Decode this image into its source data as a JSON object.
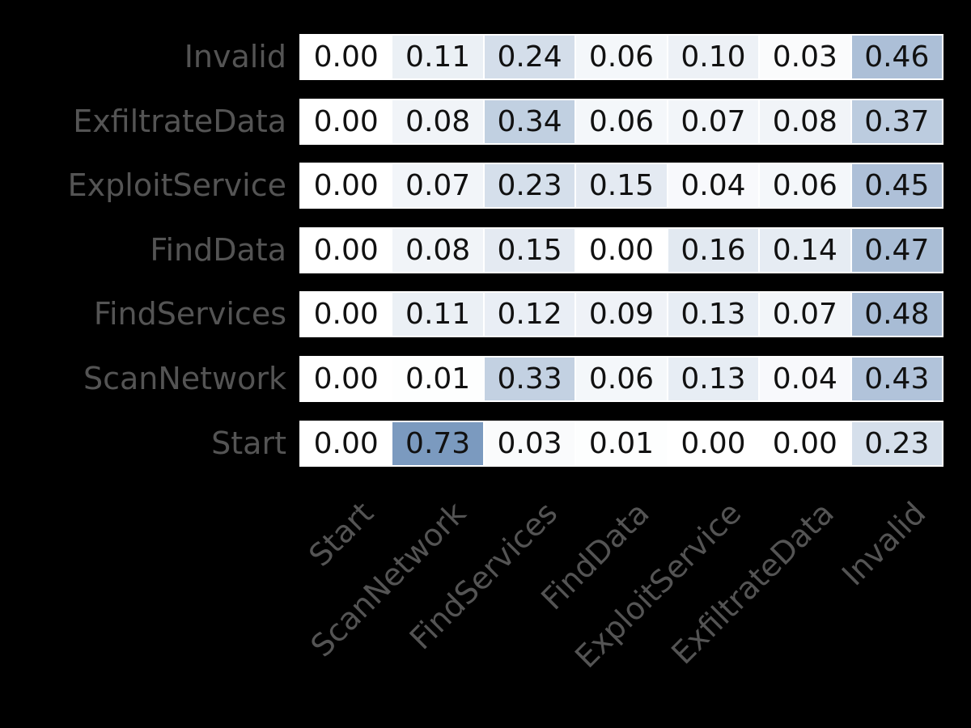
{
  "figure": {
    "background_color": "#000000"
  },
  "colors": {
    "scale_low": "#ffffff",
    "scale_high": "#4a74a8",
    "grid_line": "#ffffff",
    "cell_text": "#111111",
    "axis_label_text": "#545454"
  },
  "chart_data": {
    "type": "heatmap",
    "title": "",
    "xlabel": "",
    "ylabel": "",
    "legend": "none",
    "value_range": [
      0,
      1
    ],
    "annotation_format": "0.00",
    "rows": [
      "Invalid",
      "ExfiltrateData",
      "ExploitService",
      "FindData",
      "FindServices",
      "ScanNetwork",
      "Start"
    ],
    "columns": [
      "Start",
      "ScanNetwork",
      "FindServices",
      "FindData",
      "ExploitService",
      "ExfiltrateData",
      "Invalid"
    ],
    "values": [
      [
        0.0,
        0.11,
        0.24,
        0.06,
        0.1,
        0.03,
        0.46
      ],
      [
        0.0,
        0.08,
        0.34,
        0.06,
        0.07,
        0.08,
        0.37
      ],
      [
        0.0,
        0.07,
        0.23,
        0.15,
        0.04,
        0.06,
        0.45
      ],
      [
        0.0,
        0.08,
        0.15,
        0.0,
        0.16,
        0.14,
        0.47
      ],
      [
        0.0,
        0.11,
        0.12,
        0.09,
        0.13,
        0.07,
        0.48
      ],
      [
        0.0,
        0.01,
        0.33,
        0.06,
        0.13,
        0.04,
        0.43
      ],
      [
        0.0,
        0.73,
        0.03,
        0.01,
        0.0,
        0.0,
        0.23
      ]
    ]
  }
}
